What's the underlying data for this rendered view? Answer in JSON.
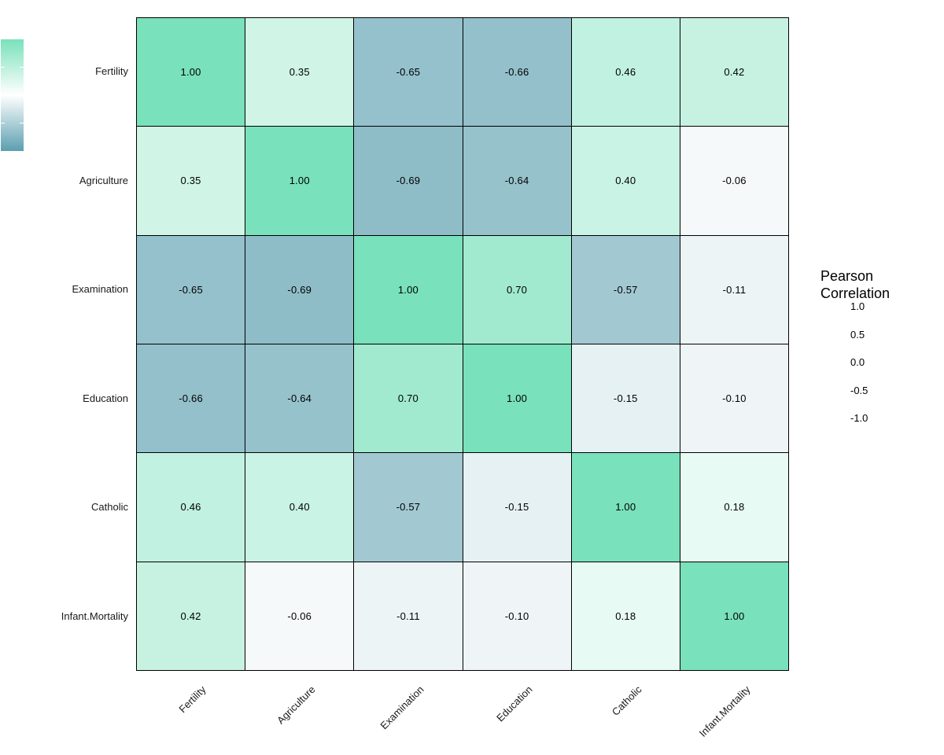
{
  "chart_data": {
    "type": "heatmap",
    "title": "",
    "variables": [
      "Fertility",
      "Agriculture",
      "Examination",
      "Education",
      "Catholic",
      "Infant.Mortality"
    ],
    "rows": [
      "Fertility",
      "Agriculture",
      "Examination",
      "Education",
      "Catholic",
      "Infant.Mortality"
    ],
    "columns": [
      "Fertility",
      "Agriculture",
      "Examination",
      "Education",
      "Catholic",
      "Infant.Mortality"
    ],
    "matrix": [
      [
        1.0,
        0.35,
        -0.65,
        -0.66,
        0.46,
        0.42
      ],
      [
        0.35,
        1.0,
        -0.69,
        -0.64,
        0.4,
        -0.06
      ],
      [
        -0.65,
        -0.69,
        1.0,
        0.7,
        -0.57,
        -0.11
      ],
      [
        -0.66,
        -0.64,
        0.7,
        1.0,
        -0.15,
        -0.1
      ],
      [
        0.46,
        0.4,
        -0.57,
        -0.15,
        1.0,
        0.18
      ],
      [
        0.42,
        -0.06,
        -0.11,
        -0.1,
        0.18,
        1.0
      ]
    ],
    "value_format_decimals": 2,
    "grid_on": true,
    "legend": {
      "title": "Pearson\nCorrelation",
      "position": "right",
      "ticks": [
        "1.0",
        "0.5",
        "0.0",
        "-0.5",
        "-1.0"
      ],
      "tick_values": [
        1.0,
        0.5,
        0.0,
        -0.5,
        -1.0
      ],
      "limits": [
        -1.0,
        1.0
      ]
    },
    "colors": {
      "high": "#79E1BB",
      "mid": "#FFFFFF",
      "low": "#5B9FB0",
      "cell_border": "#000000",
      "cell_text": "#000000",
      "axis_text": "#1A1A1A",
      "background": "#FFFFFF"
    }
  }
}
